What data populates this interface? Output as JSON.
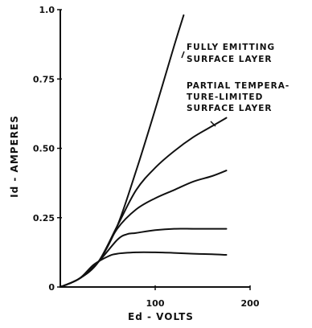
{
  "chart_data": {
    "type": "line",
    "xlabel": "Ed - VOLTS",
    "ylabel": "Id - AMPERES",
    "xlim": [
      0,
      200
    ],
    "ylim": [
      0,
      1.0
    ],
    "x_ticks": [
      {
        "value": 100,
        "label": "100"
      },
      {
        "value": 200,
        "label": "200"
      }
    ],
    "y_ticks": [
      {
        "value": 0,
        "label": "0"
      },
      {
        "value": 0.25,
        "label": "0.25"
      },
      {
        "value": 0.5,
        "label": "0.50"
      },
      {
        "value": 0.75,
        "label": "0.75"
      },
      {
        "value": 1.0,
        "label": "1.0"
      }
    ],
    "grid": false,
    "series": [
      {
        "name": "FULLY EMITTING SURFACE LAYER",
        "x": [
          0,
          20,
          40,
          60,
          80,
          100,
          120,
          130
        ],
        "y": [
          0,
          0.03,
          0.09,
          0.22,
          0.42,
          0.64,
          0.87,
          0.98
        ]
      },
      {
        "name": "PARTIAL TEMPERATURE-LIMITED SURFACE LAYER",
        "x": [
          0,
          20,
          40,
          60,
          80,
          100,
          120,
          140,
          160,
          175
        ],
        "y": [
          0,
          0.03,
          0.09,
          0.22,
          0.35,
          0.43,
          0.49,
          0.54,
          0.58,
          0.61
        ]
      },
      {
        "x": [
          0,
          20,
          40,
          60,
          80,
          100,
          120,
          140,
          160,
          175
        ],
        "y": [
          0,
          0.03,
          0.09,
          0.21,
          0.28,
          0.32,
          0.35,
          0.38,
          0.4,
          0.42
        ]
      },
      {
        "x": [
          0,
          20,
          40,
          60,
          70,
          80,
          100,
          120,
          140,
          160,
          175
        ],
        "y": [
          0,
          0.03,
          0.09,
          0.17,
          0.19,
          0.195,
          0.205,
          0.21,
          0.21,
          0.21,
          0.21
        ]
      },
      {
        "x": [
          0,
          20,
          35,
          50,
          60,
          80,
          100,
          120,
          140,
          160,
          175
        ],
        "y": [
          0,
          0.03,
          0.08,
          0.11,
          0.12,
          0.125,
          0.125,
          0.123,
          0.12,
          0.118,
          0.116
        ]
      }
    ],
    "annotations": [
      {
        "lines": [
          "FULLY EMITTING",
          "SURFACE LAYER"
        ]
      },
      {
        "lines": [
          "PARTIAL TEMPERA-",
          "TURE-LIMITED",
          "SURFACE LAYER"
        ]
      }
    ]
  }
}
